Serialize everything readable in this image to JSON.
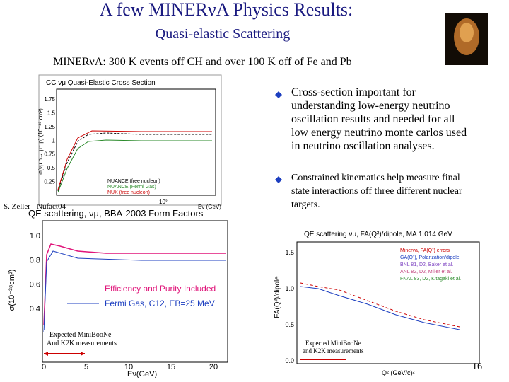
{
  "header": {
    "title": "A few MINERνA Physics Results:",
    "subtitle": "Quasi-elastic Scattering",
    "summary": "MINERνA: 300 K events off CH and over 100 K off of Fe and Pb"
  },
  "bullets": [
    [
      "Cross-section important for",
      "understanding low-energy neutrino",
      "oscillation results and needed for all",
      "low energy neutrino monte carlos used",
      "in neutrino oscillation analyses."
    ],
    [
      "Constrained kinematics help measure final",
      "state interactions off three different nuclear",
      "targets."
    ]
  ],
  "figures": [
    {
      "title": "CC νμ Quasi-Elastic Cross Section",
      "yticks": [
        "0.25",
        "0.5",
        "0.75",
        "1",
        "1.25",
        "1.5",
        "1.75"
      ],
      "ylabel": "σ(νμ n→ μ⁻ p) (10⁻³⁸ cm²)",
      "xlabel": "Eν (GeV)",
      "x_exponent": "10²",
      "credit": "S. Zeller - Nufact04",
      "legend": [
        "NUANCE (free nucleon)",
        "NUANCE (Fermi Gas)",
        "NUX (free nucleon)"
      ]
    },
    {
      "title": "QE scattering, νμ, BBA-2003 Form Factors",
      "yticks": [
        "0.4",
        "0.6",
        "0.8",
        "1.0"
      ],
      "xticks": [
        "0",
        "5",
        "10",
        "15",
        "20"
      ],
      "ylabel": "σ(10⁻³⁸cm²)",
      "xlabel": "Eν(GeV)",
      "notes": [
        "Efficiency and Purity Included",
        "Fermi Gas, C12, EB=25 MeV"
      ],
      "annotation": [
        "Expected MiniBooNe",
        "And K2K measurements"
      ]
    },
    {
      "title": "QE scattering  νμ, FA(Q²)/dipole, MA  1.014 GeV",
      "yticks": [
        "0.0",
        "0.5",
        "1.0",
        "1.5"
      ],
      "ylabel": "FA(Q²)/dipole",
      "xlabel": "Q² (GeV/c)²",
      "legend": [
        "Minerva, FA(Q²) errors",
        "GA(Q²), Polarization/dipole",
        "BNL 81, D2, Baker et al.",
        "ANL 82, D2, Miller et al.",
        "FNAL 83, D2, Kitagaki et al."
      ],
      "annotation": [
        "Expected MiniBooNe",
        "and K2K measurements"
      ]
    }
  ],
  "page_number": "16"
}
